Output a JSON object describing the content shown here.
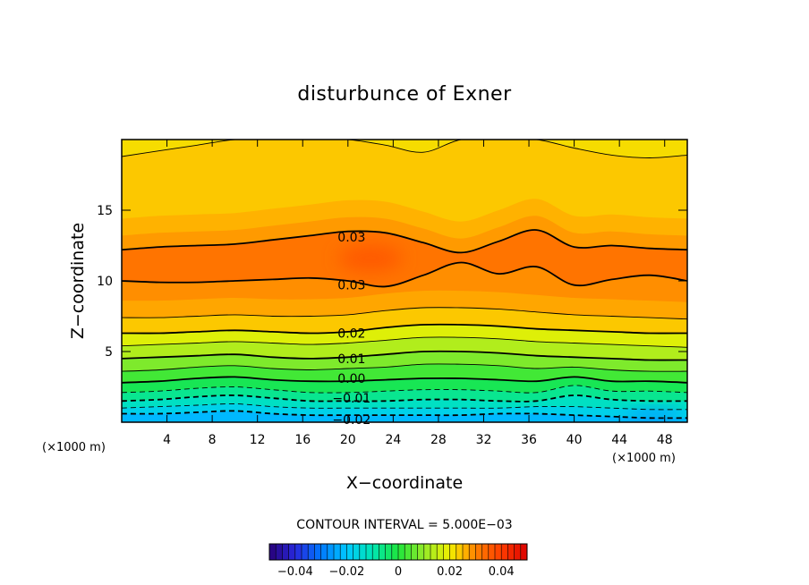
{
  "chart_data": {
    "type": "contour",
    "title": "disturbunce of Exner",
    "xlabel": "X−coordinate",
    "ylabel": "Z−coordinate",
    "x_unit": "(×1000 m)",
    "y_unit": "(×1000 m)",
    "xlim": [
      0,
      50
    ],
    "ylim": [
      0,
      20
    ],
    "x_ticks": [
      4,
      8,
      12,
      16,
      20,
      24,
      28,
      32,
      36,
      40,
      44,
      48
    ],
    "y_ticks": [
      5,
      10,
      15
    ],
    "contour_interval_text": "CONTOUR INTERVAL = 5.000E−03",
    "contour_labels": [
      {
        "text": "0.03",
        "x": 17.0,
        "z": 13.1
      },
      {
        "text": "0.03",
        "x": 17.0,
        "z": 9.7
      },
      {
        "text": "0.02",
        "x": 17.0,
        "z": 6.3
      },
      {
        "text": "0.01",
        "x": 17.0,
        "z": 4.5
      },
      {
        "text": "0.00",
        "x": 17.0,
        "z": 3.1
      },
      {
        "text": "−0.01",
        "x": 17.0,
        "z": 1.7
      },
      {
        "text": "−0.02",
        "x": 17.0,
        "z": 0.2
      }
    ],
    "colorbar": {
      "ticks": [
        -0.04,
        -0.02,
        0,
        0.02,
        0.04
      ],
      "tick_labels": [
        "−0.04",
        "−0.02",
        "0",
        "0.02",
        "0.04"
      ],
      "range": [
        -0.05,
        0.05
      ]
    },
    "contour_levels": [
      {
        "value": -0.02,
        "z": [
          0.6,
          0.6,
          0.7,
          0.8,
          0.6,
          0.5,
          0.5,
          0.5,
          0.5,
          0.5,
          0.6,
          0.6,
          0.5,
          0.4,
          0.3,
          0.3
        ],
        "dashed": true
      },
      {
        "value": -0.015,
        "z": [
          1.0,
          1.1,
          1.2,
          1.3,
          1.1,
          1.0,
          1.0,
          1.0,
          1.0,
          1.0,
          1.0,
          1.1,
          1.1,
          1.0,
          0.9,
          0.9
        ],
        "dashed": true
      },
      {
        "value": -0.01,
        "z": [
          1.5,
          1.6,
          1.8,
          1.9,
          1.7,
          1.5,
          1.5,
          1.5,
          1.6,
          1.6,
          1.5,
          1.5,
          1.9,
          1.6,
          1.5,
          1.5
        ],
        "dashed": true
      },
      {
        "value": -0.005,
        "z": [
          2.1,
          2.2,
          2.4,
          2.5,
          2.3,
          2.1,
          2.1,
          2.2,
          2.3,
          2.3,
          2.2,
          2.1,
          2.6,
          2.2,
          2.2,
          2.1
        ],
        "dashed": true
      },
      {
        "value": 0.0,
        "z": [
          2.8,
          2.9,
          3.1,
          3.2,
          3.0,
          2.9,
          2.9,
          3.0,
          3.1,
          3.1,
          3.0,
          2.9,
          3.2,
          2.9,
          2.9,
          2.8
        ],
        "dashed": false
      },
      {
        "value": 0.005,
        "z": [
          3.6,
          3.7,
          3.9,
          4.0,
          3.8,
          3.7,
          3.8,
          3.9,
          4.1,
          4.1,
          4.0,
          3.8,
          3.9,
          3.7,
          3.6,
          3.6
        ],
        "dashed": false
      },
      {
        "value": 0.01,
        "z": [
          4.5,
          4.6,
          4.7,
          4.8,
          4.6,
          4.5,
          4.6,
          4.8,
          5.0,
          5.0,
          4.9,
          4.7,
          4.6,
          4.5,
          4.4,
          4.4
        ],
        "dashed": false
      },
      {
        "value": 0.015,
        "z": [
          5.4,
          5.5,
          5.6,
          5.7,
          5.6,
          5.5,
          5.6,
          5.8,
          6.0,
          6.0,
          5.9,
          5.7,
          5.6,
          5.5,
          5.4,
          5.3
        ],
        "dashed": false
      },
      {
        "value": 0.02,
        "z": [
          6.3,
          6.3,
          6.4,
          6.5,
          6.4,
          6.3,
          6.4,
          6.7,
          6.9,
          6.9,
          6.8,
          6.6,
          6.5,
          6.4,
          6.3,
          6.3
        ],
        "dashed": false
      },
      {
        "value": 0.025,
        "z": [
          7.4,
          7.4,
          7.5,
          7.6,
          7.5,
          7.5,
          7.6,
          7.9,
          8.1,
          8.1,
          8.0,
          7.8,
          7.6,
          7.5,
          7.4,
          7.3
        ],
        "dashed": false
      },
      {
        "value": 0.03,
        "z": [
          10.0,
          9.9,
          9.9,
          10.0,
          10.1,
          10.2,
          10.0,
          9.6,
          10.4,
          11.3,
          10.5,
          11.0,
          9.7,
          10.1,
          10.4,
          10.0
        ],
        "dashed": false
      },
      {
        "value": 0.03,
        "z": [
          12.2,
          12.4,
          12.5,
          12.6,
          12.9,
          13.2,
          13.5,
          13.4,
          12.7,
          12.0,
          12.8,
          13.6,
          12.4,
          12.5,
          12.3,
          12.2
        ],
        "dashed": false
      },
      {
        "value": 0.025,
        "z": [
          18.8,
          19.2,
          19.6,
          20.0,
          20.0,
          20.0,
          20.0,
          19.6,
          19.1,
          20.0,
          20.0,
          20.0,
          19.4,
          18.9,
          18.7,
          18.9
        ],
        "dashed": false
      }
    ]
  }
}
